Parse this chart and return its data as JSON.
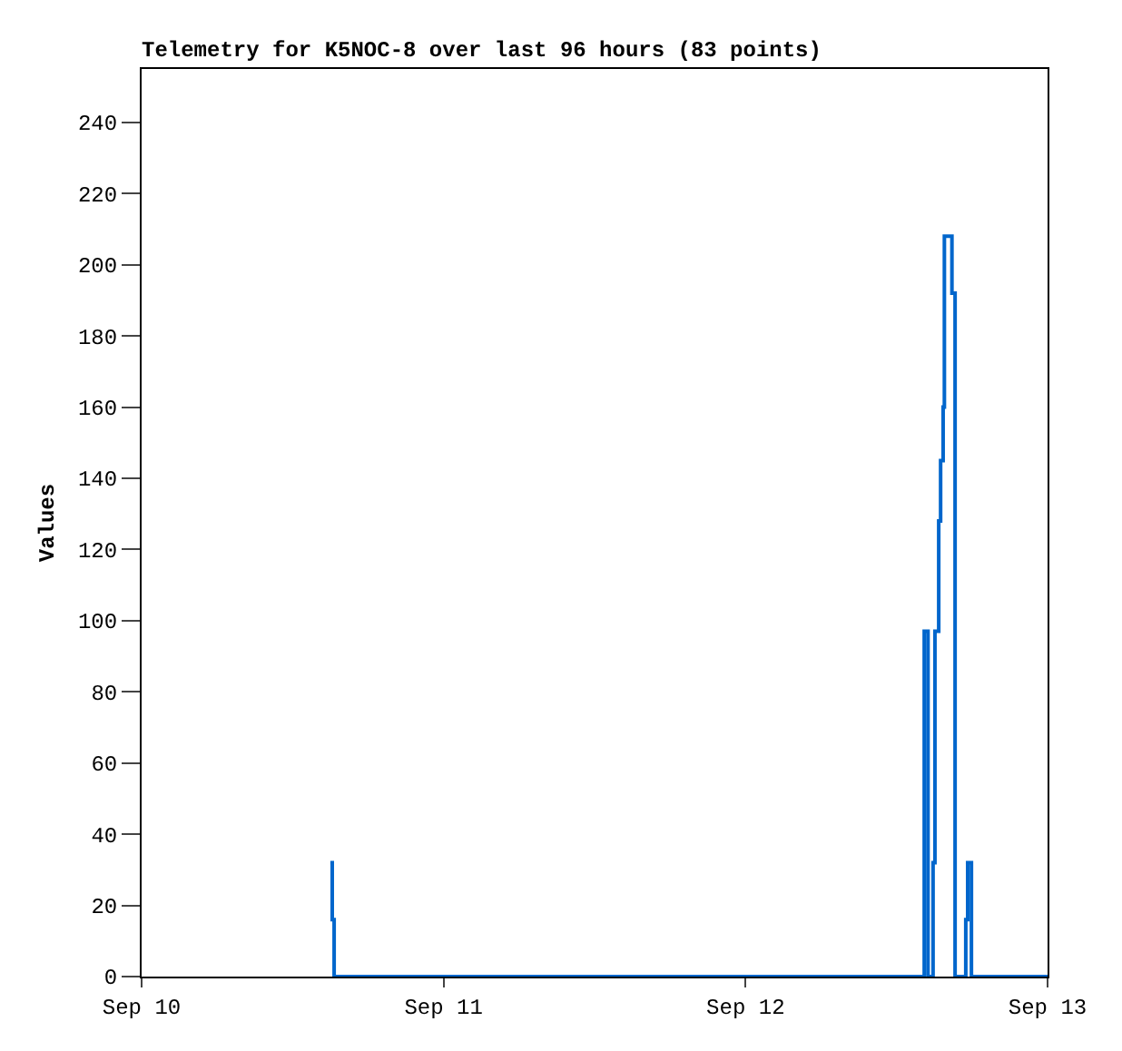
{
  "chart_data": {
    "type": "step",
    "title": "Telemetry for K5NOC-8 over last 96 hours (83 points)",
    "ylabel": "Values",
    "x": [
      "--09-10T15:00",
      "--09-10T15:09",
      "--09-10T15:18",
      "--09-12T14:12",
      "--09-12T14:30",
      "--09-12T14:54",
      "--09-12T15:03",
      "--09-12T15:21",
      "--09-12T15:30",
      "--09-12T15:42",
      "--09-12T15:48",
      "--09-12T16:24",
      "--09-12T16:39",
      "--09-12T17:30",
      "--09-12T17:39",
      "--09-12T17:57",
      "--09-13T00:00"
    ],
    "series": [
      {
        "color": "#0066cc",
        "values": [
          32,
          16,
          0,
          97,
          0,
          32,
          97,
          128,
          145,
          160,
          208,
          192,
          0,
          16,
          32,
          0,
          0
        ]
      }
    ],
    "xlim": [
      "--09-10",
      "--09-13"
    ],
    "xticks": [
      {
        "value": "--09-10",
        "label": "Sep 10"
      },
      {
        "value": "--09-11",
        "label": "Sep 11"
      },
      {
        "value": "--09-12",
        "label": "Sep 12"
      },
      {
        "value": "--09-13",
        "label": "Sep 13"
      }
    ],
    "ylim": [
      0,
      255
    ],
    "yticks": [
      0,
      20,
      40,
      60,
      80,
      100,
      120,
      140,
      160,
      180,
      200,
      220,
      240
    ],
    "grid": false,
    "marker": "none",
    "line_style": "solid"
  }
}
